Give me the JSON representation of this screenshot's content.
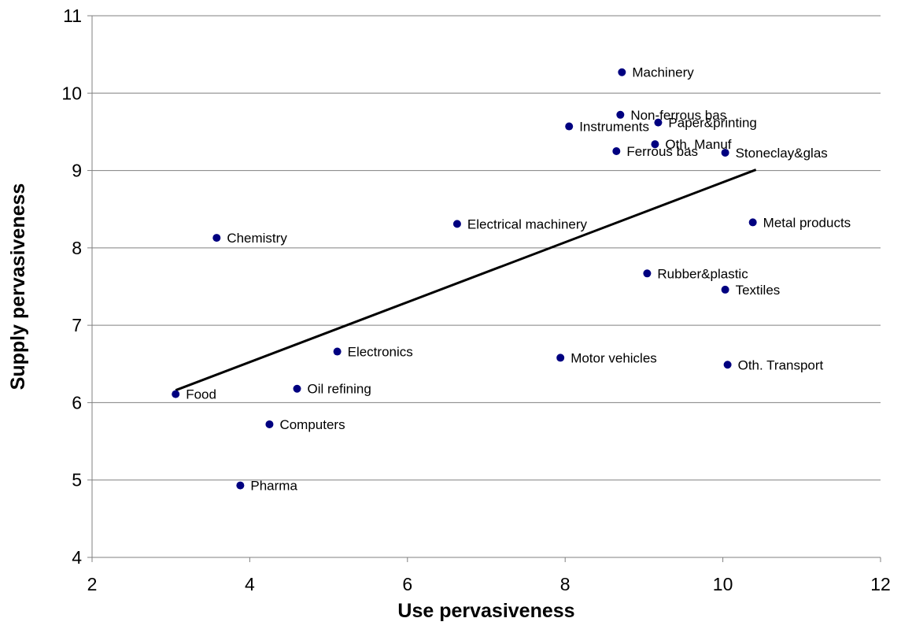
{
  "chart_data": {
    "type": "scatter",
    "title": "",
    "xlabel": "Use pervasiveness",
    "ylabel": "Supply pervasiveness",
    "xlim": [
      2,
      12
    ],
    "ylim": [
      4,
      11
    ],
    "xticks": [
      2,
      4,
      6,
      8,
      10,
      12
    ],
    "yticks": [
      4,
      5,
      6,
      7,
      8,
      9,
      10,
      11
    ],
    "grid": "horizontal",
    "marker_color": "#000080",
    "points": [
      {
        "label": "Machinery",
        "x": 8.72,
        "y": 10.27
      },
      {
        "label": "Non-ferrous bas",
        "x": 8.7,
        "y": 9.72
      },
      {
        "label": "Instruments",
        "x": 8.05,
        "y": 9.57
      },
      {
        "label": "Paper&printing",
        "x": 9.18,
        "y": 9.62
      },
      {
        "label": "Oth. Manuf",
        "x": 9.14,
        "y": 9.34
      },
      {
        "label": "Ferrous bas",
        "x": 8.65,
        "y": 9.25
      },
      {
        "label": "Stoneclay&glas",
        "x": 10.03,
        "y": 9.23
      },
      {
        "label": "Electrical machinery",
        "x": 6.63,
        "y": 8.31
      },
      {
        "label": "Metal products",
        "x": 10.38,
        "y": 8.33
      },
      {
        "label": "Chemistry",
        "x": 3.58,
        "y": 8.13
      },
      {
        "label": "Rubber&plastic",
        "x": 9.04,
        "y": 7.67
      },
      {
        "label": "Textiles",
        "x": 10.03,
        "y": 7.46
      },
      {
        "label": "Electronics",
        "x": 5.11,
        "y": 6.66
      },
      {
        "label": "Motor vehicles",
        "x": 7.94,
        "y": 6.58
      },
      {
        "label": "Oth. Transport",
        "x": 10.06,
        "y": 6.49
      },
      {
        "label": "Food",
        "x": 3.06,
        "y": 6.11
      },
      {
        "label": "Oil refining",
        "x": 4.6,
        "y": 6.18
      },
      {
        "label": "Computers",
        "x": 4.25,
        "y": 5.72
      },
      {
        "label": "Pharma",
        "x": 3.88,
        "y": 4.93
      }
    ],
    "trendline": {
      "x": [
        3.06,
        10.42
      ],
      "y": [
        6.16,
        9.01
      ]
    }
  }
}
